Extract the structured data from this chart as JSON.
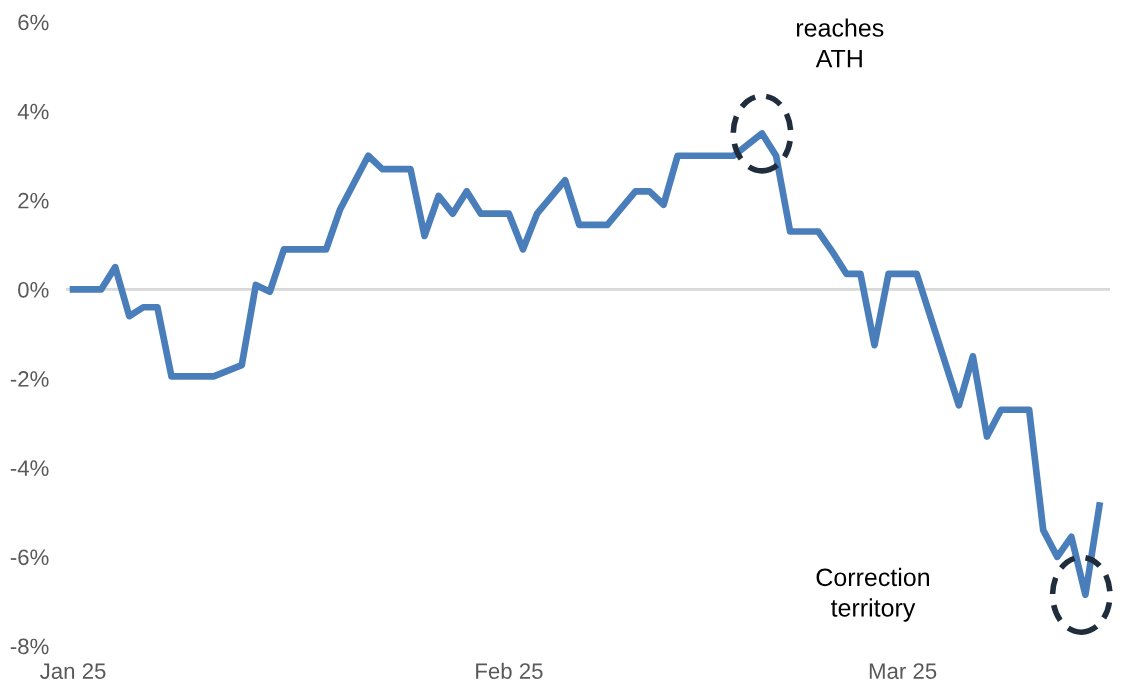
{
  "chart_data": {
    "type": "line",
    "x": [
      "2025-01-01",
      "2025-01-03",
      "2025-01-04",
      "2025-01-05",
      "2025-01-06",
      "2025-01-07",
      "2025-01-08",
      "2025-01-11",
      "2025-01-13",
      "2025-01-14",
      "2025-01-15",
      "2025-01-16",
      "2025-01-19",
      "2025-01-20",
      "2025-01-21",
      "2025-01-22",
      "2025-01-23",
      "2025-01-25",
      "2025-01-26",
      "2025-01-27",
      "2025-01-28",
      "2025-01-29",
      "2025-01-30",
      "2025-02-01",
      "2025-02-02",
      "2025-02-03",
      "2025-02-05",
      "2025-02-06",
      "2025-02-08",
      "2025-02-10",
      "2025-02-11",
      "2025-02-12",
      "2025-02-13",
      "2025-02-14",
      "2025-02-17",
      "2025-02-19",
      "2025-02-20",
      "2025-02-21",
      "2025-02-23",
      "2025-02-24",
      "2025-02-25",
      "2025-02-26",
      "2025-02-27",
      "2025-02-28",
      "2025-03-02",
      "2025-03-05",
      "2025-03-06",
      "2025-03-07",
      "2025-03-08",
      "2025-03-10",
      "2025-03-11",
      "2025-03-12",
      "2025-03-13",
      "2025-03-14",
      "2025-03-15"
    ],
    "series": [
      {
        "color": "#4a7ebb",
        "values": [
          0,
          0,
          0.5,
          -0.6,
          -0.4,
          -0.4,
          -1.95,
          -1.95,
          -1.7,
          0.1,
          -0.05,
          0.9,
          0.9,
          1.8,
          2.4,
          3.0,
          2.7,
          2.7,
          1.2,
          2.1,
          1.7,
          2.2,
          1.7,
          1.7,
          0.9,
          1.7,
          2.45,
          1.45,
          1.45,
          2.2,
          2.2,
          1.9,
          3.0,
          3.0,
          3.0,
          3.5,
          3.0,
          1.3,
          1.3,
          0.85,
          0.35,
          0.35,
          -1.25,
          0.35,
          0.35,
          -2.6,
          -1.5,
          -3.3,
          -2.7,
          -2.7,
          -5.4,
          -6.0,
          -5.55,
          -6.85,
          -4.85
        ]
      }
    ],
    "xlim": [
      "2024-12-31T12:00",
      "2025-03-15T18:00"
    ],
    "ref_lines": [
      {
        "axis": "y",
        "value": 0,
        "color": "#d9d9d9"
      }
    ],
    "xticks": [
      {
        "value": "2025-01-01",
        "label": "Jan 25"
      },
      {
        "value": "2025-02-01",
        "label": "Feb 25"
      },
      {
        "value": "2025-03-01",
        "label": "Mar 25"
      }
    ],
    "ylim": [
      -8,
      6
    ],
    "yticks": [
      {
        "value": -8,
        "label": "-8%"
      },
      {
        "value": -6,
        "label": "-6%"
      },
      {
        "value": -4,
        "label": "-4%"
      },
      {
        "value": -2,
        "label": "-2%"
      },
      {
        "value": 0,
        "label": "0%"
      },
      {
        "value": 2,
        "label": "2%"
      },
      {
        "value": 4,
        "label": "4%"
      },
      {
        "value": 6,
        "label": "6%"
      }
    ],
    "grid": false,
    "legend": false,
    "marker": "none",
    "line_style": "solid",
    "annotations": [
      "reaches\nATH",
      "Correction\nterritory"
    ]
  }
}
